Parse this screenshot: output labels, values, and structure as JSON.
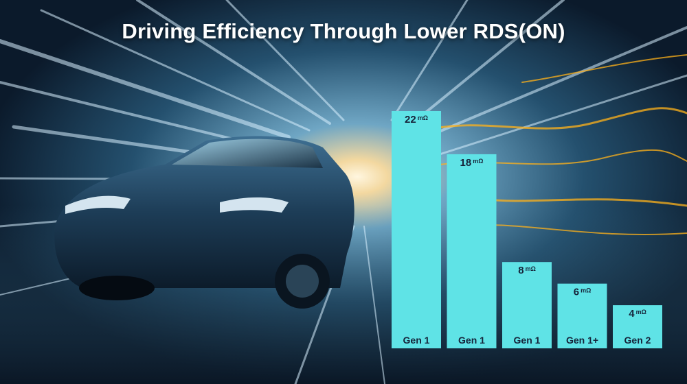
{
  "title": "Driving Efficiency Through Lower RDS(ON)",
  "colors": {
    "bar": "#5fe3e6",
    "label_text": "#16243a",
    "title_text": "#ffffff"
  },
  "background": "blurred-electric-car-tunnel-photo",
  "chart_data": {
    "type": "bar",
    "title": "Driving Efficiency Through Lower RDS(ON)",
    "categories": [
      "Gen 1",
      "Gen 1",
      "Gen 1",
      "Gen 1+",
      "Gen 2"
    ],
    "values": [
      22,
      18,
      8,
      6,
      4
    ],
    "unit": "mΩ",
    "data_labels": [
      "22",
      "18",
      "8",
      "6",
      "4"
    ],
    "xlabel": "",
    "ylabel": "",
    "ylim": [
      0,
      22
    ],
    "grid": false,
    "legend": "none"
  }
}
